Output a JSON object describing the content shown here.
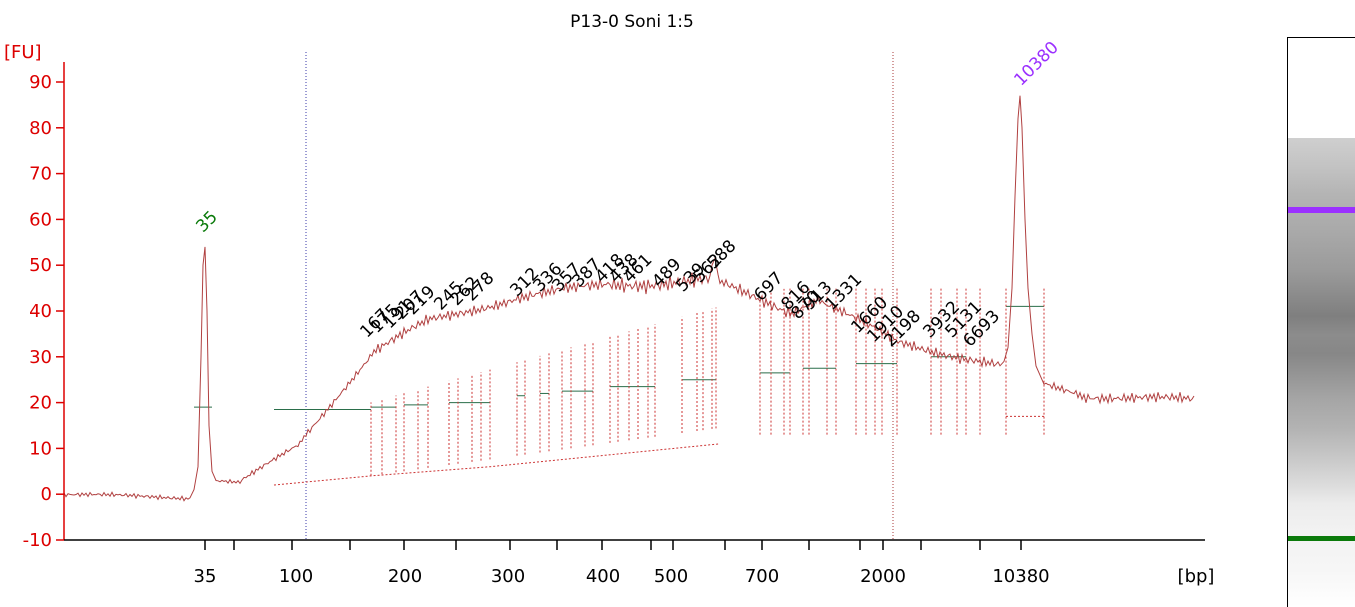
{
  "chart_data": {
    "type": "line",
    "title": "P13-0 Soni 1:5",
    "ylabel": "[FU]",
    "xlabel": "[bp]",
    "ylim": [
      -10,
      92
    ],
    "yticks": [
      -10,
      0,
      10,
      20,
      30,
      40,
      50,
      60,
      70,
      80,
      90
    ],
    "xticks": [
      "35",
      "100",
      "200",
      "300",
      "400",
      "500",
      "700",
      "2000",
      "10380"
    ],
    "lower_marker": "35",
    "upper_marker": "10380",
    "peak_labels": [
      "167",
      "175",
      "191",
      "207",
      "219",
      "245",
      "262",
      "278",
      "312",
      "336",
      "357",
      "387",
      "418",
      "438",
      "461",
      "489",
      "539",
      "562",
      "588",
      "697",
      "816",
      "870",
      "913",
      "1331",
      "1660",
      "1910",
      "2198",
      "3932",
      "5131",
      "6693"
    ],
    "colors": {
      "trace": "#b04040",
      "axis": "#dd0000",
      "lower_marker": "#0a7a0a",
      "upper_marker": "#9b30ff",
      "dotted_line": "#cc3333",
      "region_line": "#2a6e4a"
    }
  }
}
